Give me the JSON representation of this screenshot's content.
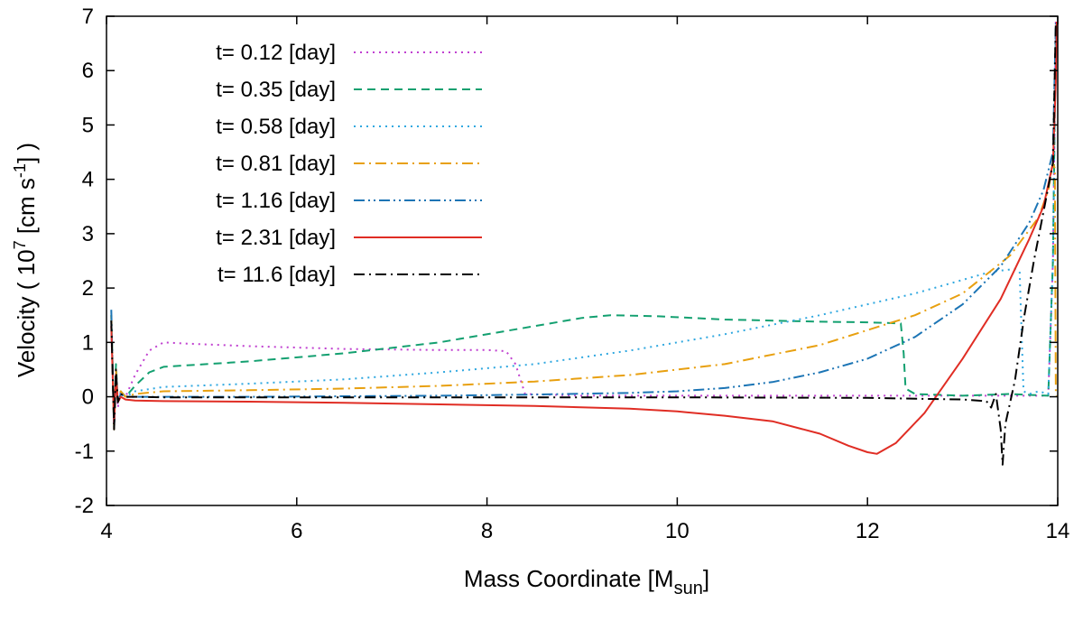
{
  "chart_data": {
    "type": "line",
    "xlabel": {
      "main": "Mass Coordinate [M",
      "sub": "sun",
      "tail": "]"
    },
    "ylabel": {
      "pre": "Velocity ( 10",
      "sup1": "7",
      "mid": " [cm s",
      "sup2": "-1",
      "tail": "] )"
    },
    "xlim": [
      4,
      14
    ],
    "ylim": [
      -2,
      7
    ],
    "xticks": [
      4,
      6,
      8,
      10,
      12,
      14
    ],
    "yticks": [
      -2,
      -1,
      0,
      1,
      2,
      3,
      4,
      5,
      6,
      7
    ],
    "legend_position": "top-left",
    "series": [
      {
        "name": "t= 0.12 [day]",
        "color": "#c040d0",
        "dash": "dot",
        "x": [
          4.05,
          4.08,
          4.1,
          4.12,
          4.15,
          4.2,
          4.3,
          4.45,
          4.6,
          4.8,
          5.5,
          6.5,
          7.5,
          8.0,
          8.2,
          8.3,
          8.4,
          9.0,
          10.0,
          11.0,
          12.0,
          13.0,
          13.5,
          13.9,
          13.95,
          13.98
        ],
        "y": [
          1.3,
          -0.6,
          0.5,
          -0.2,
          0.1,
          0.0,
          0.4,
          0.85,
          1.0,
          0.98,
          0.93,
          0.88,
          0.86,
          0.86,
          0.84,
          0.6,
          0.05,
          0.02,
          0.02,
          0.02,
          0.02,
          0.02,
          0.02,
          0.02,
          2.5,
          6.9
        ]
      },
      {
        "name": "t= 0.35 [day]",
        "color": "#13a070",
        "dash": "dash",
        "x": [
          4.05,
          4.08,
          4.1,
          4.12,
          4.15,
          4.2,
          4.3,
          4.45,
          4.6,
          5.5,
          6.5,
          7.5,
          8.5,
          9.0,
          9.3,
          9.8,
          10.5,
          11.5,
          12.0,
          12.35,
          12.38,
          12.4,
          12.5,
          13.0,
          13.5,
          13.9,
          13.95,
          13.98
        ],
        "y": [
          1.5,
          -0.5,
          0.6,
          -0.1,
          0.1,
          0.0,
          0.2,
          0.45,
          0.55,
          0.65,
          0.8,
          1.0,
          1.3,
          1.45,
          1.5,
          1.48,
          1.42,
          1.38,
          1.37,
          1.35,
          0.8,
          0.15,
          0.05,
          0.02,
          0.05,
          0.02,
          2.5,
          6.8
        ]
      },
      {
        "name": "t= 0.58 [day]",
        "color": "#30a8e0",
        "dash": "dot",
        "x": [
          4.05,
          4.08,
          4.1,
          4.12,
          4.15,
          4.2,
          4.3,
          4.6,
          5.5,
          6.5,
          7.5,
          8.5,
          9.5,
          10.5,
          11.5,
          12.5,
          13.0,
          13.3,
          13.55,
          13.6,
          13.62,
          13.64,
          13.7,
          13.8,
          13.9,
          13.95,
          13.98
        ],
        "y": [
          1.4,
          -0.5,
          0.4,
          -0.1,
          0.1,
          0.0,
          0.1,
          0.18,
          0.24,
          0.32,
          0.45,
          0.6,
          0.85,
          1.15,
          1.5,
          1.9,
          2.15,
          2.3,
          2.35,
          2.3,
          1.2,
          0.1,
          0.05,
          0.1,
          0.05,
          2.5,
          6.8
        ]
      },
      {
        "name": "t= 0.81 [day]",
        "color": "#e8a010",
        "dash": "dashdot",
        "x": [
          4.05,
          4.08,
          4.1,
          4.12,
          4.15,
          4.2,
          4.3,
          4.6,
          5.5,
          6.5,
          7.5,
          8.5,
          9.5,
          10.5,
          11.5,
          12.5,
          13.0,
          13.5,
          13.8,
          13.9,
          13.95,
          13.97,
          13.98,
          13.99
        ],
        "y": [
          1.5,
          -0.6,
          0.5,
          -0.1,
          0.1,
          0.0,
          0.05,
          0.1,
          0.12,
          0.15,
          0.2,
          0.28,
          0.4,
          0.6,
          0.95,
          1.5,
          1.9,
          2.6,
          3.3,
          3.8,
          4.3,
          4.2,
          0.1,
          0.0
        ]
      },
      {
        "name": "t= 1.16 [day]",
        "color": "#1c75b5",
        "dash": "dashdotdot",
        "x": [
          4.05,
          4.08,
          4.1,
          4.12,
          4.15,
          4.2,
          4.3,
          4.6,
          5.5,
          6.5,
          7.5,
          8.5,
          9.5,
          10.0,
          10.5,
          11.0,
          11.5,
          12.0,
          12.5,
          13.0,
          13.4,
          13.7,
          13.85,
          13.95,
          13.98
        ],
        "y": [
          1.6,
          -0.6,
          0.4,
          -0.1,
          0.05,
          0.0,
          0.0,
          0.0,
          0.0,
          0.01,
          0.02,
          0.04,
          0.07,
          0.1,
          0.16,
          0.27,
          0.45,
          0.7,
          1.1,
          1.7,
          2.4,
          3.2,
          3.8,
          4.5,
          6.9
        ]
      },
      {
        "name": "t= 2.31 [day]",
        "color": "#e02d24",
        "dash": "solid",
        "x": [
          4.05,
          4.08,
          4.1,
          4.12,
          4.15,
          4.2,
          4.3,
          4.6,
          5.5,
          6.5,
          7.5,
          8.5,
          9.5,
          10.0,
          10.5,
          11.0,
          11.5,
          11.8,
          12.0,
          12.1,
          12.3,
          12.6,
          13.0,
          13.4,
          13.7,
          13.85,
          13.95,
          13.98,
          13.99
        ],
        "y": [
          1.3,
          -0.5,
          0.4,
          -0.1,
          0.0,
          -0.05,
          -0.07,
          -0.08,
          -0.09,
          -0.11,
          -0.14,
          -0.17,
          -0.22,
          -0.27,
          -0.35,
          -0.45,
          -0.68,
          -0.9,
          -1.02,
          -1.05,
          -0.85,
          -0.3,
          0.7,
          1.8,
          2.9,
          3.5,
          4.3,
          5.8,
          6.9
        ]
      },
      {
        "name": "t= 11.6 [day]",
        "color": "#000000",
        "dash": "dashdot",
        "x": [
          4.05,
          4.08,
          4.1,
          4.12,
          4.15,
          4.2,
          4.3,
          4.6,
          6.0,
          8.0,
          10.0,
          12.0,
          13.0,
          13.25,
          13.3,
          13.35,
          13.4,
          13.42,
          13.45,
          13.55,
          13.65,
          13.75,
          13.85,
          13.95,
          13.98
        ],
        "y": [
          1.4,
          -0.6,
          0.5,
          -0.1,
          0.05,
          0.0,
          0.0,
          -0.01,
          -0.01,
          -0.01,
          -0.01,
          -0.02,
          -0.05,
          -0.08,
          -0.2,
          0.05,
          -0.6,
          -1.25,
          -0.5,
          0.3,
          1.5,
          2.5,
          3.4,
          4.3,
          6.9
        ]
      }
    ]
  }
}
